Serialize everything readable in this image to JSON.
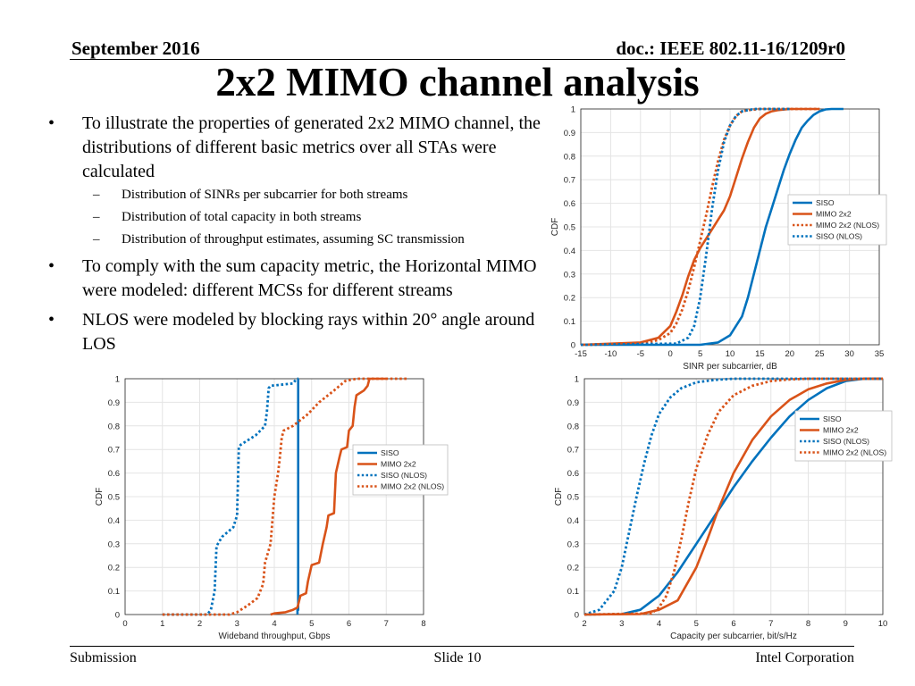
{
  "header": {
    "date": "September 2016",
    "doc": "doc.: IEEE 802.11-16/1209r0"
  },
  "title": "2x2 MIMO channel analysis",
  "bullets": [
    {
      "text": "To illustrate the properties of generated 2x2 MIMO channel, the distributions of different basic metrics over all STAs were calculated",
      "sub": [
        "Distribution of SINRs per subcarrier for both streams",
        "Distribution of total capacity in both streams",
        "Distribution of throughput estimates, assuming SC transmission"
      ]
    },
    {
      "text": "To comply with the sum capacity metric, the Horizontal MIMO were modeled: different MCSs for different streams",
      "sub": []
    },
    {
      "text": "NLOS were modeled by blocking rays within 20° angle around LOS",
      "sub": []
    }
  ],
  "bullet_glyph": "•",
  "sub_glyph": "–",
  "footer": {
    "left": "Submission",
    "center": "Slide 10",
    "right": "Intel Corporation"
  },
  "colors": {
    "blue": "#0072BD",
    "orange": "#D95319",
    "grid": "#e4e4e4",
    "axis": "#262626"
  },
  "chart_data": [
    {
      "type": "line",
      "title": "",
      "xlabel": "SINR per subcarrier, dB",
      "ylabel": "CDF",
      "xlim": [
        -15,
        35
      ],
      "ylim": [
        0,
        1
      ],
      "xticks": [
        -15,
        -10,
        -5,
        0,
        5,
        10,
        15,
        20,
        25,
        30,
        35
      ],
      "yticks": [
        0,
        0.1,
        0.2,
        0.3,
        0.4,
        0.5,
        0.6,
        0.7,
        0.8,
        0.9,
        1
      ],
      "legend_position": "right",
      "series": [
        {
          "name": "SISO",
          "style": "solid",
          "color": "#0072BD",
          "x": [
            -15,
            0,
            5,
            8,
            10,
            12,
            13,
            14,
            15,
            16,
            17,
            18,
            19,
            20,
            21,
            22,
            23,
            24,
            25,
            26,
            27,
            28,
            29
          ],
          "y": [
            0,
            0,
            0,
            0.01,
            0.04,
            0.12,
            0.2,
            0.3,
            0.4,
            0.5,
            0.58,
            0.66,
            0.74,
            0.81,
            0.87,
            0.92,
            0.95,
            0.975,
            0.99,
            0.998,
            1,
            1,
            1
          ]
        },
        {
          "name": "MIMO 2x2",
          "style": "solid",
          "color": "#D95319",
          "x": [
            -15,
            -5,
            -2,
            0,
            1,
            2,
            3,
            4,
            5,
            6,
            7,
            8,
            9,
            10,
            11,
            12,
            13,
            14,
            15,
            16,
            17,
            18,
            20,
            22,
            25
          ],
          "y": [
            0,
            0.01,
            0.03,
            0.08,
            0.14,
            0.21,
            0.29,
            0.36,
            0.41,
            0.45,
            0.49,
            0.53,
            0.57,
            0.63,
            0.71,
            0.79,
            0.86,
            0.92,
            0.96,
            0.98,
            0.99,
            0.995,
            1,
            1,
            1
          ]
        },
        {
          "name": "MIMO 2x2 (NLOS)",
          "style": "dotted",
          "color": "#D95319",
          "x": [
            -15,
            -5,
            -2,
            0,
            1,
            2,
            3,
            4,
            5,
            6,
            7,
            8,
            9,
            10,
            11,
            12,
            13,
            15,
            17,
            20,
            25
          ],
          "y": [
            0,
            0.005,
            0.02,
            0.05,
            0.09,
            0.15,
            0.23,
            0.33,
            0.44,
            0.55,
            0.67,
            0.78,
            0.87,
            0.93,
            0.97,
            0.99,
            0.995,
            1,
            1,
            1,
            1
          ]
        },
        {
          "name": "SISO (NLOS)",
          "style": "dotted",
          "color": "#0072BD",
          "x": [
            -15,
            1,
            3,
            4,
            5,
            6,
            7,
            8,
            9,
            10,
            11,
            12,
            13,
            14,
            15,
            16,
            18,
            20
          ],
          "y": [
            0,
            0.005,
            0.03,
            0.08,
            0.2,
            0.38,
            0.58,
            0.74,
            0.86,
            0.93,
            0.97,
            0.99,
            0.995,
            1,
            1,
            1,
            1,
            1
          ]
        }
      ]
    },
    {
      "type": "line",
      "title": "",
      "xlabel": "Wideband throughput, Gbps",
      "ylabel": "CDF",
      "xlim": [
        0,
        8
      ],
      "ylim": [
        0,
        1
      ],
      "xticks": [
        0,
        1,
        2,
        3,
        4,
        5,
        6,
        7,
        8
      ],
      "yticks": [
        0,
        0.1,
        0.2,
        0.3,
        0.4,
        0.5,
        0.6,
        0.7,
        0.8,
        0.9,
        1
      ],
      "legend_position": "right",
      "series": [
        {
          "name": "SISO",
          "style": "solid",
          "color": "#0072BD",
          "x": [
            4.62,
            4.62,
            4.64,
            4.64
          ],
          "y": [
            0,
            0.02,
            0.02,
            1
          ]
        },
        {
          "name": "MIMO 2x2",
          "style": "solid",
          "color": "#D95319",
          "x": [
            3.9,
            4.0,
            4.3,
            4.5,
            4.62,
            4.7,
            4.85,
            4.9,
            5.0,
            5.2,
            5.3,
            5.4,
            5.45,
            5.6,
            5.65,
            5.75,
            5.8,
            5.95,
            6.0,
            6.1,
            6.15,
            6.2,
            6.4,
            6.5,
            6.55,
            7.0
          ],
          "y": [
            0,
            0.005,
            0.01,
            0.02,
            0.03,
            0.08,
            0.09,
            0.14,
            0.21,
            0.22,
            0.3,
            0.37,
            0.42,
            0.43,
            0.6,
            0.67,
            0.7,
            0.71,
            0.78,
            0.8,
            0.88,
            0.93,
            0.95,
            0.97,
            1,
            1
          ]
        },
        {
          "name": "SISO (NLOS)",
          "style": "dotted",
          "color": "#0072BD",
          "x": [
            1,
            2.2,
            2.3,
            2.4,
            2.45,
            2.6,
            2.9,
            3.0,
            3.05,
            3.1,
            3.5,
            3.75,
            3.8,
            3.85,
            3.9,
            4.5,
            4.6,
            4.65
          ],
          "y": [
            0,
            0,
            0.02,
            0.1,
            0.29,
            0.33,
            0.37,
            0.42,
            0.71,
            0.72,
            0.76,
            0.8,
            0.86,
            0.96,
            0.97,
            0.98,
            1,
            1
          ]
        },
        {
          "name": "MIMO 2x2 (NLOS)",
          "style": "dotted",
          "color": "#D95319",
          "x": [
            1,
            2.8,
            3.0,
            3.3,
            3.55,
            3.7,
            3.75,
            3.9,
            4.0,
            4.1,
            4.15,
            4.2,
            4.25,
            4.5,
            4.9,
            5.2,
            5.6,
            5.9,
            6.2,
            7.0,
            7.6
          ],
          "y": [
            0,
            0,
            0.01,
            0.04,
            0.07,
            0.13,
            0.22,
            0.3,
            0.5,
            0.6,
            0.67,
            0.75,
            0.78,
            0.8,
            0.85,
            0.9,
            0.95,
            0.99,
            1,
            1,
            1
          ]
        }
      ]
    },
    {
      "type": "line",
      "title": "",
      "xlabel": "Capacity per subcarrier, bit/s/Hz",
      "ylabel": "CDF",
      "xlim": [
        2,
        10
      ],
      "ylim": [
        0,
        1
      ],
      "xticks": [
        2,
        3,
        4,
        5,
        6,
        7,
        8,
        9,
        10
      ],
      "yticks": [
        0,
        0.1,
        0.2,
        0.3,
        0.4,
        0.5,
        0.6,
        0.7,
        0.8,
        0.9,
        1
      ],
      "legend_position": "top-right",
      "series": [
        {
          "name": "SISO",
          "style": "solid",
          "color": "#0072BD",
          "x": [
            2,
            3,
            3.5,
            4,
            4.5,
            5,
            5.5,
            6,
            6.5,
            7,
            7.5,
            8,
            8.5,
            9,
            9.5,
            10
          ],
          "y": [
            0,
            0.002,
            0.02,
            0.08,
            0.18,
            0.3,
            0.42,
            0.54,
            0.65,
            0.75,
            0.84,
            0.91,
            0.96,
            0.99,
            1,
            1
          ]
        },
        {
          "name": "MIMO 2x2",
          "style": "solid",
          "color": "#D95319",
          "x": [
            2,
            3.5,
            4,
            4.5,
            5,
            5.3,
            5.6,
            6,
            6.5,
            7,
            7.5,
            8,
            8.5,
            9,
            9.5,
            10
          ],
          "y": [
            0,
            0.002,
            0.02,
            0.06,
            0.2,
            0.32,
            0.45,
            0.6,
            0.74,
            0.84,
            0.91,
            0.955,
            0.98,
            0.995,
            1,
            1
          ]
        },
        {
          "name": "SISO (NLOS)",
          "style": "dotted",
          "color": "#0072BD",
          "x": [
            2,
            2.4,
            2.8,
            3.0,
            3.2,
            3.4,
            3.6,
            3.8,
            4.0,
            4.3,
            4.6,
            5.0,
            5.5,
            6,
            7,
            10
          ],
          "y": [
            0,
            0.02,
            0.1,
            0.2,
            0.35,
            0.5,
            0.64,
            0.76,
            0.85,
            0.92,
            0.96,
            0.985,
            0.995,
            1,
            1,
            1
          ]
        },
        {
          "name": "MIMO 2x2 (NLOS)",
          "style": "dotted",
          "color": "#D95319",
          "x": [
            2,
            3.8,
            4.0,
            4.2,
            4.4,
            4.6,
            4.8,
            5.0,
            5.3,
            5.6,
            6.0,
            6.5,
            7,
            7.5,
            8,
            10
          ],
          "y": [
            0,
            0.005,
            0.03,
            0.08,
            0.18,
            0.32,
            0.48,
            0.62,
            0.76,
            0.86,
            0.93,
            0.97,
            0.99,
            0.997,
            1,
            1
          ]
        }
      ]
    }
  ]
}
